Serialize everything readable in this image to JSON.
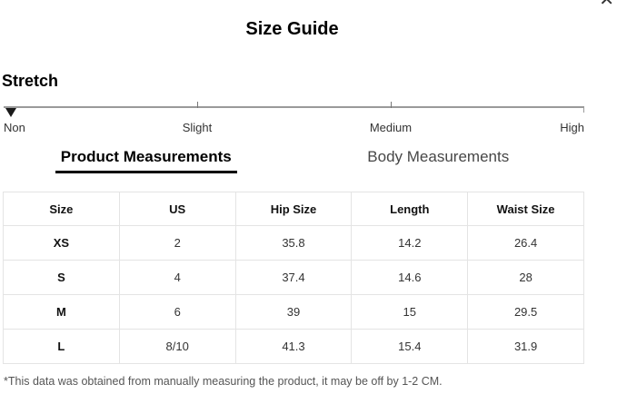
{
  "header": {
    "title": "Size Guide",
    "close_glyph": "✕"
  },
  "stretch": {
    "label": "Stretch",
    "levels": [
      "Non",
      "Slight",
      "Medium",
      "High"
    ],
    "selected": "Non"
  },
  "tabs": [
    {
      "label": "Product Measurements",
      "active": true
    },
    {
      "label": "Body Measurements",
      "active": false
    }
  ],
  "table": {
    "headers": [
      "Size",
      "US",
      "Hip Size",
      "Length",
      "Waist Size"
    ],
    "rows": [
      [
        "XS",
        "2",
        "35.8",
        "14.2",
        "26.4"
      ],
      [
        "S",
        "4",
        "37.4",
        "14.6",
        "28"
      ],
      [
        "M",
        "6",
        "39",
        "15",
        "29.5"
      ],
      [
        "L",
        "8/10",
        "41.3",
        "15.4",
        "31.9"
      ]
    ]
  },
  "footnote": "*This data was obtained from manually measuring the product, it may be off by 1-2 CM.",
  "colors": {
    "tab_active_underline": "#000000",
    "tab_inactive_text": "#474747",
    "table_border": "#e4e4e4",
    "slider_track": "#9a9a9a",
    "marker": "#1a1a1a",
    "footnote_text": "#555555"
  }
}
